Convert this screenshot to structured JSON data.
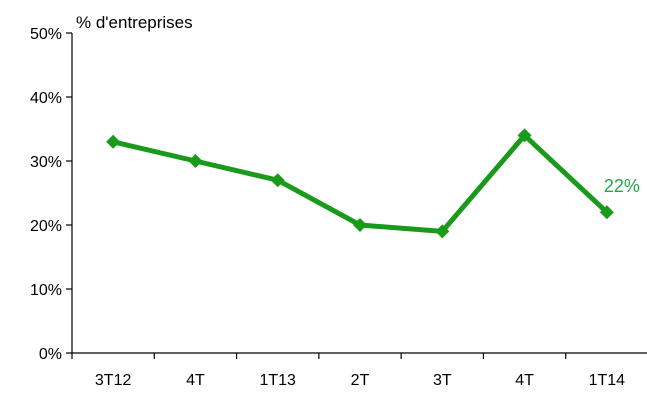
{
  "chart_data": {
    "type": "line",
    "categories": [
      "3T12",
      "4T",
      "1T13",
      "2T",
      "3T",
      "4T",
      "1T14"
    ],
    "values": [
      33,
      30,
      27,
      20,
      19,
      34,
      22
    ],
    "ylabel": "% d'entreprises",
    "ylim": [
      0,
      50
    ],
    "y_ticks": [
      "0%",
      "10%",
      "20%",
      "30%",
      "40%",
      "50%"
    ],
    "grid": false,
    "legend": "none",
    "marker": "diamond",
    "annotations": [
      {
        "category_index": 6,
        "text": "22%"
      }
    ]
  },
  "colors": {
    "series": "#1a9a1a",
    "label": "#22a84a",
    "axis": "#000000"
  }
}
